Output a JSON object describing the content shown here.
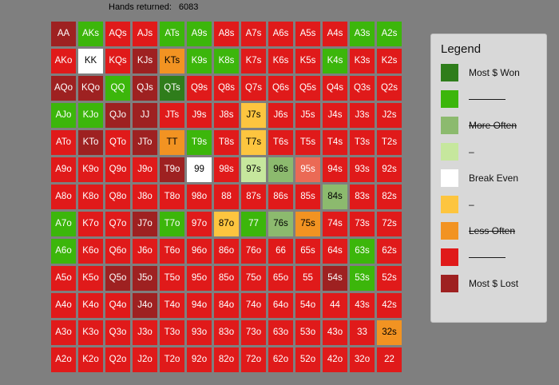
{
  "header": {
    "hands_returned_label": "Hands returned:",
    "hands_returned_value": "6083"
  },
  "palette": {
    "G": "#2f7d1b",
    "g": "#3cb60b",
    "s": "#8cba6e",
    "l": "#c6e79d",
    "w": "#ffffff",
    "y": "#fdc53f",
    "o": "#f29322",
    "r": "#e01a1a",
    "R": "#9e2121",
    "p": "#eb6a55"
  },
  "dark_text_keys": [
    "w",
    "y",
    "o",
    "l",
    "s"
  ],
  "grid": {
    "rows": [
      [
        [
          "AA",
          "R"
        ],
        [
          "AKs",
          "g"
        ],
        [
          "AQs",
          "r"
        ],
        [
          "AJs",
          "r"
        ],
        [
          "ATs",
          "g"
        ],
        [
          "A9s",
          "g"
        ],
        [
          "A8s",
          "r"
        ],
        [
          "A7s",
          "r"
        ],
        [
          "A6s",
          "r"
        ],
        [
          "A5s",
          "r"
        ],
        [
          "A4s",
          "r"
        ],
        [
          "A3s",
          "g"
        ],
        [
          "A2s",
          "g"
        ]
      ],
      [
        [
          "AKo",
          "r"
        ],
        [
          "KK",
          "w"
        ],
        [
          "KQs",
          "r"
        ],
        [
          "KJs",
          "R"
        ],
        [
          "KTs",
          "o"
        ],
        [
          "K9s",
          "g"
        ],
        [
          "K8s",
          "g"
        ],
        [
          "K7s",
          "r"
        ],
        [
          "K6s",
          "r"
        ],
        [
          "K5s",
          "r"
        ],
        [
          "K4s",
          "g"
        ],
        [
          "K3s",
          "r"
        ],
        [
          "K2s",
          "r"
        ]
      ],
      [
        [
          "AQo",
          "R"
        ],
        [
          "KQo",
          "R"
        ],
        [
          "QQ",
          "g"
        ],
        [
          "QJs",
          "R"
        ],
        [
          "QTs",
          "G"
        ],
        [
          "Q9s",
          "r"
        ],
        [
          "Q8s",
          "r"
        ],
        [
          "Q7s",
          "r"
        ],
        [
          "Q6s",
          "r"
        ],
        [
          "Q5s",
          "r"
        ],
        [
          "Q4s",
          "r"
        ],
        [
          "Q3s",
          "r"
        ],
        [
          "Q2s",
          "r"
        ]
      ],
      [
        [
          "AJo",
          "g"
        ],
        [
          "KJo",
          "g"
        ],
        [
          "QJo",
          "R"
        ],
        [
          "JJ",
          "R"
        ],
        [
          "JTs",
          "r"
        ],
        [
          "J9s",
          "r"
        ],
        [
          "J8s",
          "r"
        ],
        [
          "J7s",
          "y"
        ],
        [
          "J6s",
          "r"
        ],
        [
          "J5s",
          "r"
        ],
        [
          "J4s",
          "r"
        ],
        [
          "J3s",
          "r"
        ],
        [
          "J2s",
          "r"
        ]
      ],
      [
        [
          "ATo",
          "r"
        ],
        [
          "KTo",
          "R"
        ],
        [
          "QTo",
          "r"
        ],
        [
          "JTo",
          "R"
        ],
        [
          "TT",
          "o"
        ],
        [
          "T9s",
          "g"
        ],
        [
          "T8s",
          "r"
        ],
        [
          "T7s",
          "y"
        ],
        [
          "T6s",
          "r"
        ],
        [
          "T5s",
          "r"
        ],
        [
          "T4s",
          "r"
        ],
        [
          "T3s",
          "r"
        ],
        [
          "T2s",
          "r"
        ]
      ],
      [
        [
          "A9o",
          "r"
        ],
        [
          "K9o",
          "r"
        ],
        [
          "Q9o",
          "r"
        ],
        [
          "J9o",
          "r"
        ],
        [
          "T9o",
          "R"
        ],
        [
          "99",
          "w"
        ],
        [
          "98s",
          "r"
        ],
        [
          "97s",
          "l"
        ],
        [
          "96s",
          "s"
        ],
        [
          "95s",
          "p"
        ],
        [
          "94s",
          "r"
        ],
        [
          "93s",
          "r"
        ],
        [
          "92s",
          "r"
        ]
      ],
      [
        [
          "A8o",
          "r"
        ],
        [
          "K8o",
          "r"
        ],
        [
          "Q8o",
          "r"
        ],
        [
          "J8o",
          "r"
        ],
        [
          "T8o",
          "r"
        ],
        [
          "98o",
          "r"
        ],
        [
          "88",
          "r"
        ],
        [
          "87s",
          "r"
        ],
        [
          "86s",
          "r"
        ],
        [
          "85s",
          "r"
        ],
        [
          "84s",
          "s"
        ],
        [
          "83s",
          "r"
        ],
        [
          "82s",
          "r"
        ]
      ],
      [
        [
          "A7o",
          "g"
        ],
        [
          "K7o",
          "r"
        ],
        [
          "Q7o",
          "r"
        ],
        [
          "J7o",
          "R"
        ],
        [
          "T7o",
          "g"
        ],
        [
          "97o",
          "r"
        ],
        [
          "87o",
          "y"
        ],
        [
          "77",
          "g"
        ],
        [
          "76s",
          "s"
        ],
        [
          "75s",
          "o"
        ],
        [
          "74s",
          "r"
        ],
        [
          "73s",
          "r"
        ],
        [
          "72s",
          "r"
        ]
      ],
      [
        [
          "A6o",
          "g"
        ],
        [
          "K6o",
          "r"
        ],
        [
          "Q6o",
          "r"
        ],
        [
          "J6o",
          "r"
        ],
        [
          "T6o",
          "r"
        ],
        [
          "96o",
          "r"
        ],
        [
          "86o",
          "r"
        ],
        [
          "76o",
          "r"
        ],
        [
          "66",
          "r"
        ],
        [
          "65s",
          "r"
        ],
        [
          "64s",
          "r"
        ],
        [
          "63s",
          "g"
        ],
        [
          "62s",
          "r"
        ]
      ],
      [
        [
          "A5o",
          "r"
        ],
        [
          "K5o",
          "r"
        ],
        [
          "Q5o",
          "R"
        ],
        [
          "J5o",
          "R"
        ],
        [
          "T5o",
          "r"
        ],
        [
          "95o",
          "r"
        ],
        [
          "85o",
          "r"
        ],
        [
          "75o",
          "r"
        ],
        [
          "65o",
          "r"
        ],
        [
          "55",
          "r"
        ],
        [
          "54s",
          "R"
        ],
        [
          "53s",
          "g"
        ],
        [
          "52s",
          "r"
        ]
      ],
      [
        [
          "A4o",
          "r"
        ],
        [
          "K4o",
          "r"
        ],
        [
          "Q4o",
          "r"
        ],
        [
          "J4o",
          "R"
        ],
        [
          "T4o",
          "r"
        ],
        [
          "94o",
          "r"
        ],
        [
          "84o",
          "r"
        ],
        [
          "74o",
          "r"
        ],
        [
          "64o",
          "r"
        ],
        [
          "54o",
          "r"
        ],
        [
          "44",
          "r"
        ],
        [
          "43s",
          "r"
        ],
        [
          "42s",
          "r"
        ]
      ],
      [
        [
          "A3o",
          "r"
        ],
        [
          "K3o",
          "r"
        ],
        [
          "Q3o",
          "r"
        ],
        [
          "J3o",
          "r"
        ],
        [
          "T3o",
          "r"
        ],
        [
          "93o",
          "r"
        ],
        [
          "83o",
          "r"
        ],
        [
          "73o",
          "r"
        ],
        [
          "63o",
          "r"
        ],
        [
          "53o",
          "r"
        ],
        [
          "43o",
          "r"
        ],
        [
          "33",
          "r"
        ],
        [
          "32s",
          "o"
        ]
      ],
      [
        [
          "A2o",
          "r"
        ],
        [
          "K2o",
          "r"
        ],
        [
          "Q2o",
          "r"
        ],
        [
          "J2o",
          "r"
        ],
        [
          "T2o",
          "r"
        ],
        [
          "92o",
          "r"
        ],
        [
          "82o",
          "r"
        ],
        [
          "72o",
          "r"
        ],
        [
          "62o",
          "r"
        ],
        [
          "52o",
          "r"
        ],
        [
          "42o",
          "r"
        ],
        [
          "32o",
          "r"
        ],
        [
          "22",
          "r"
        ]
      ]
    ]
  },
  "legend": {
    "title": "Legend",
    "items": [
      {
        "color": "#2f7d1b",
        "label": "Most $ Won",
        "style": "text"
      },
      {
        "color": "#3cb60b",
        "label": "",
        "style": "line"
      },
      {
        "color": "#8cba6e",
        "label": "More Often",
        "style": "struck"
      },
      {
        "color": "#c6e79d",
        "label": "–",
        "style": "text"
      },
      {
        "color": "#ffffff",
        "label": "Break Even",
        "style": "text"
      },
      {
        "color": "#fdc53f",
        "label": "–",
        "style": "text"
      },
      {
        "color": "#f29322",
        "label": "Less Often",
        "style": "struck"
      },
      {
        "color": "#e01a1a",
        "label": "",
        "style": "line"
      },
      {
        "color": "#9e2121",
        "label": "Most $ Lost",
        "style": "text"
      }
    ]
  }
}
